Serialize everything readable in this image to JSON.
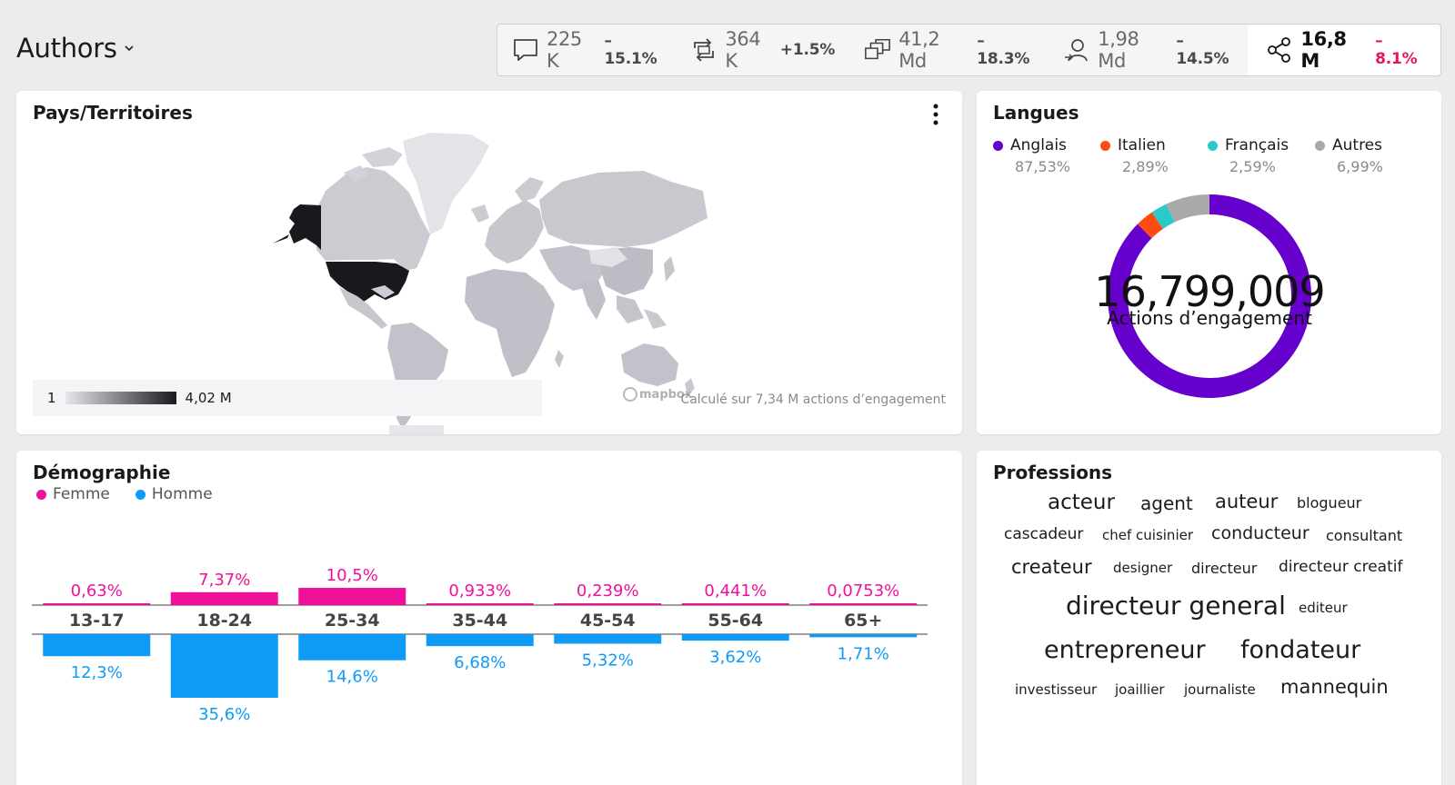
{
  "header": {
    "title": "Authors"
  },
  "kpis": [
    {
      "icon": "comment-icon",
      "value": "225 K",
      "change": "–15.1%"
    },
    {
      "icon": "repost-icon",
      "value": "364 K",
      "change": "+1.5%"
    },
    {
      "icon": "impressions-icon",
      "value": "41,2 Md",
      "change": "–18.3%"
    },
    {
      "icon": "reach-icon",
      "value": "1,98 Md",
      "change": "–14.5%"
    },
    {
      "icon": "share-icon",
      "value": "16,8 M",
      "change": "–8.1%"
    }
  ],
  "map_card": {
    "title": "Pays/Territoires",
    "legend_min": "1",
    "legend_max": "4,02 M",
    "attribution": "mapbox",
    "note": "Calculé sur 7,34 M actions d’engagement"
  },
  "languages_card": {
    "title": "Langues",
    "center_value": "16,799,009",
    "center_label": "Actions d’engagement",
    "items": [
      {
        "name": "Anglais",
        "pct": "87,53%",
        "share": 87.53,
        "color": "#6600cc"
      },
      {
        "name": "Italien",
        "pct": "2,89%",
        "share": 2.89,
        "color": "#ff4a12"
      },
      {
        "name": "Français",
        "pct": "2,59%",
        "share": 2.59,
        "color": "#2cc9c9"
      },
      {
        "name": "Autres",
        "pct": "6,99%",
        "share": 6.99,
        "color": "#a9a9a9"
      }
    ]
  },
  "demographics_card": {
    "title": "Démographie",
    "legend": [
      {
        "name": "Femme",
        "color": "#f0119b"
      },
      {
        "name": "Homme",
        "color": "#0e9bf5"
      }
    ],
    "chart_data": {
      "type": "bar",
      "categories": [
        "13-17",
        "18-24",
        "25-34",
        "35-44",
        "45-54",
        "55-64",
        "65+"
      ],
      "series": [
        {
          "name": "Femme",
          "values": [
            0.63,
            7.37,
            10.5,
            0.933,
            0.239,
            0.441,
            0.0753
          ],
          "labels": [
            "0,63%",
            "7,37%",
            "10,5%",
            "0,933%",
            "0,239%",
            "0,441%",
            "0,0753%"
          ]
        },
        {
          "name": "Homme",
          "values": [
            12.3,
            35.6,
            14.6,
            6.68,
            5.32,
            3.62,
            1.71
          ],
          "labels": [
            "12,3%",
            "35,6%",
            "14,6%",
            "6,68%",
            "5,32%",
            "3,62%",
            "1,71%"
          ]
        }
      ]
    }
  },
  "professions_card": {
    "title": "Professions",
    "words": [
      {
        "text": "acteur",
        "size": 23
      },
      {
        "text": "agent",
        "size": 20
      },
      {
        "text": "auteur",
        "size": 21
      },
      {
        "text": "blogueur",
        "size": 16
      },
      {
        "text": "cascadeur",
        "size": 17
      },
      {
        "text": "chef cuisinier",
        "size": 15
      },
      {
        "text": "conducteur",
        "size": 19
      },
      {
        "text": "consultant",
        "size": 16
      },
      {
        "text": "createur",
        "size": 21
      },
      {
        "text": "designer",
        "size": 15
      },
      {
        "text": "directeur",
        "size": 16
      },
      {
        "text": "directeur creatif",
        "size": 17
      },
      {
        "text": "directeur general",
        "size": 28
      },
      {
        "text": "editeur",
        "size": 15
      },
      {
        "text": "entrepreneur",
        "size": 27
      },
      {
        "text": "fondateur",
        "size": 27
      },
      {
        "text": "investisseur",
        "size": 15
      },
      {
        "text": "joaillier",
        "size": 15
      },
      {
        "text": "journaliste",
        "size": 15
      },
      {
        "text": "mannequin",
        "size": 21
      }
    ]
  }
}
